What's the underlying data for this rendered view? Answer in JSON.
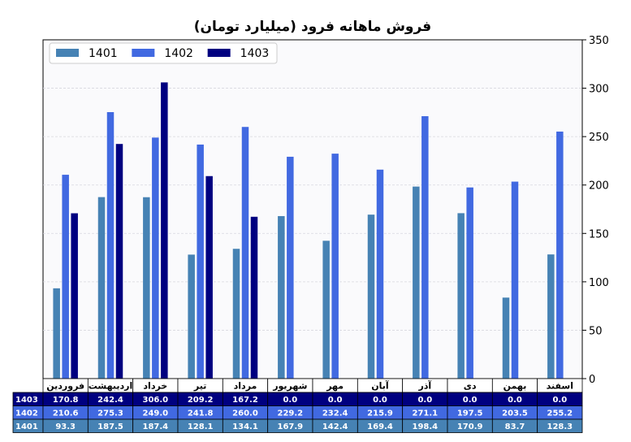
{
  "chart_data": {
    "type": "bar",
    "title": "فروش ماهانه فرود (میلیارد تومان)",
    "xlabel": "",
    "ylabel": "",
    "ylim": [
      0,
      350
    ],
    "yticks": [
      0,
      50,
      100,
      150,
      200,
      250,
      300,
      350
    ],
    "y_axis_side": "right",
    "grid": true,
    "legend_position": "top-left",
    "categories": [
      "فروردین",
      "اردیبهشت",
      "خرداد",
      "تیر",
      "مرداد",
      "شهریور",
      "مهر",
      "آبان",
      "آذر",
      "دی",
      "بهمن",
      "اسفند"
    ],
    "series": [
      {
        "name": "1401",
        "color": "#4682b4",
        "values": [
          93.3,
          187.5,
          187.4,
          128.1,
          134.1,
          167.9,
          142.4,
          169.4,
          198.4,
          170.9,
          83.7,
          128.3
        ]
      },
      {
        "name": "1402",
        "color": "#4169e1",
        "values": [
          210.6,
          275.3,
          249.0,
          241.8,
          260.0,
          229.2,
          232.4,
          215.9,
          271.1,
          197.5,
          203.5,
          255.2
        ]
      },
      {
        "name": "1403",
        "color": "#000080",
        "values": [
          170.8,
          242.4,
          306.0,
          209.2,
          167.2,
          0.0,
          0.0,
          0.0,
          0.0,
          0.0,
          0.0,
          0.0
        ]
      }
    ],
    "table_row_order": [
      "1403",
      "1402",
      "1401"
    ]
  }
}
